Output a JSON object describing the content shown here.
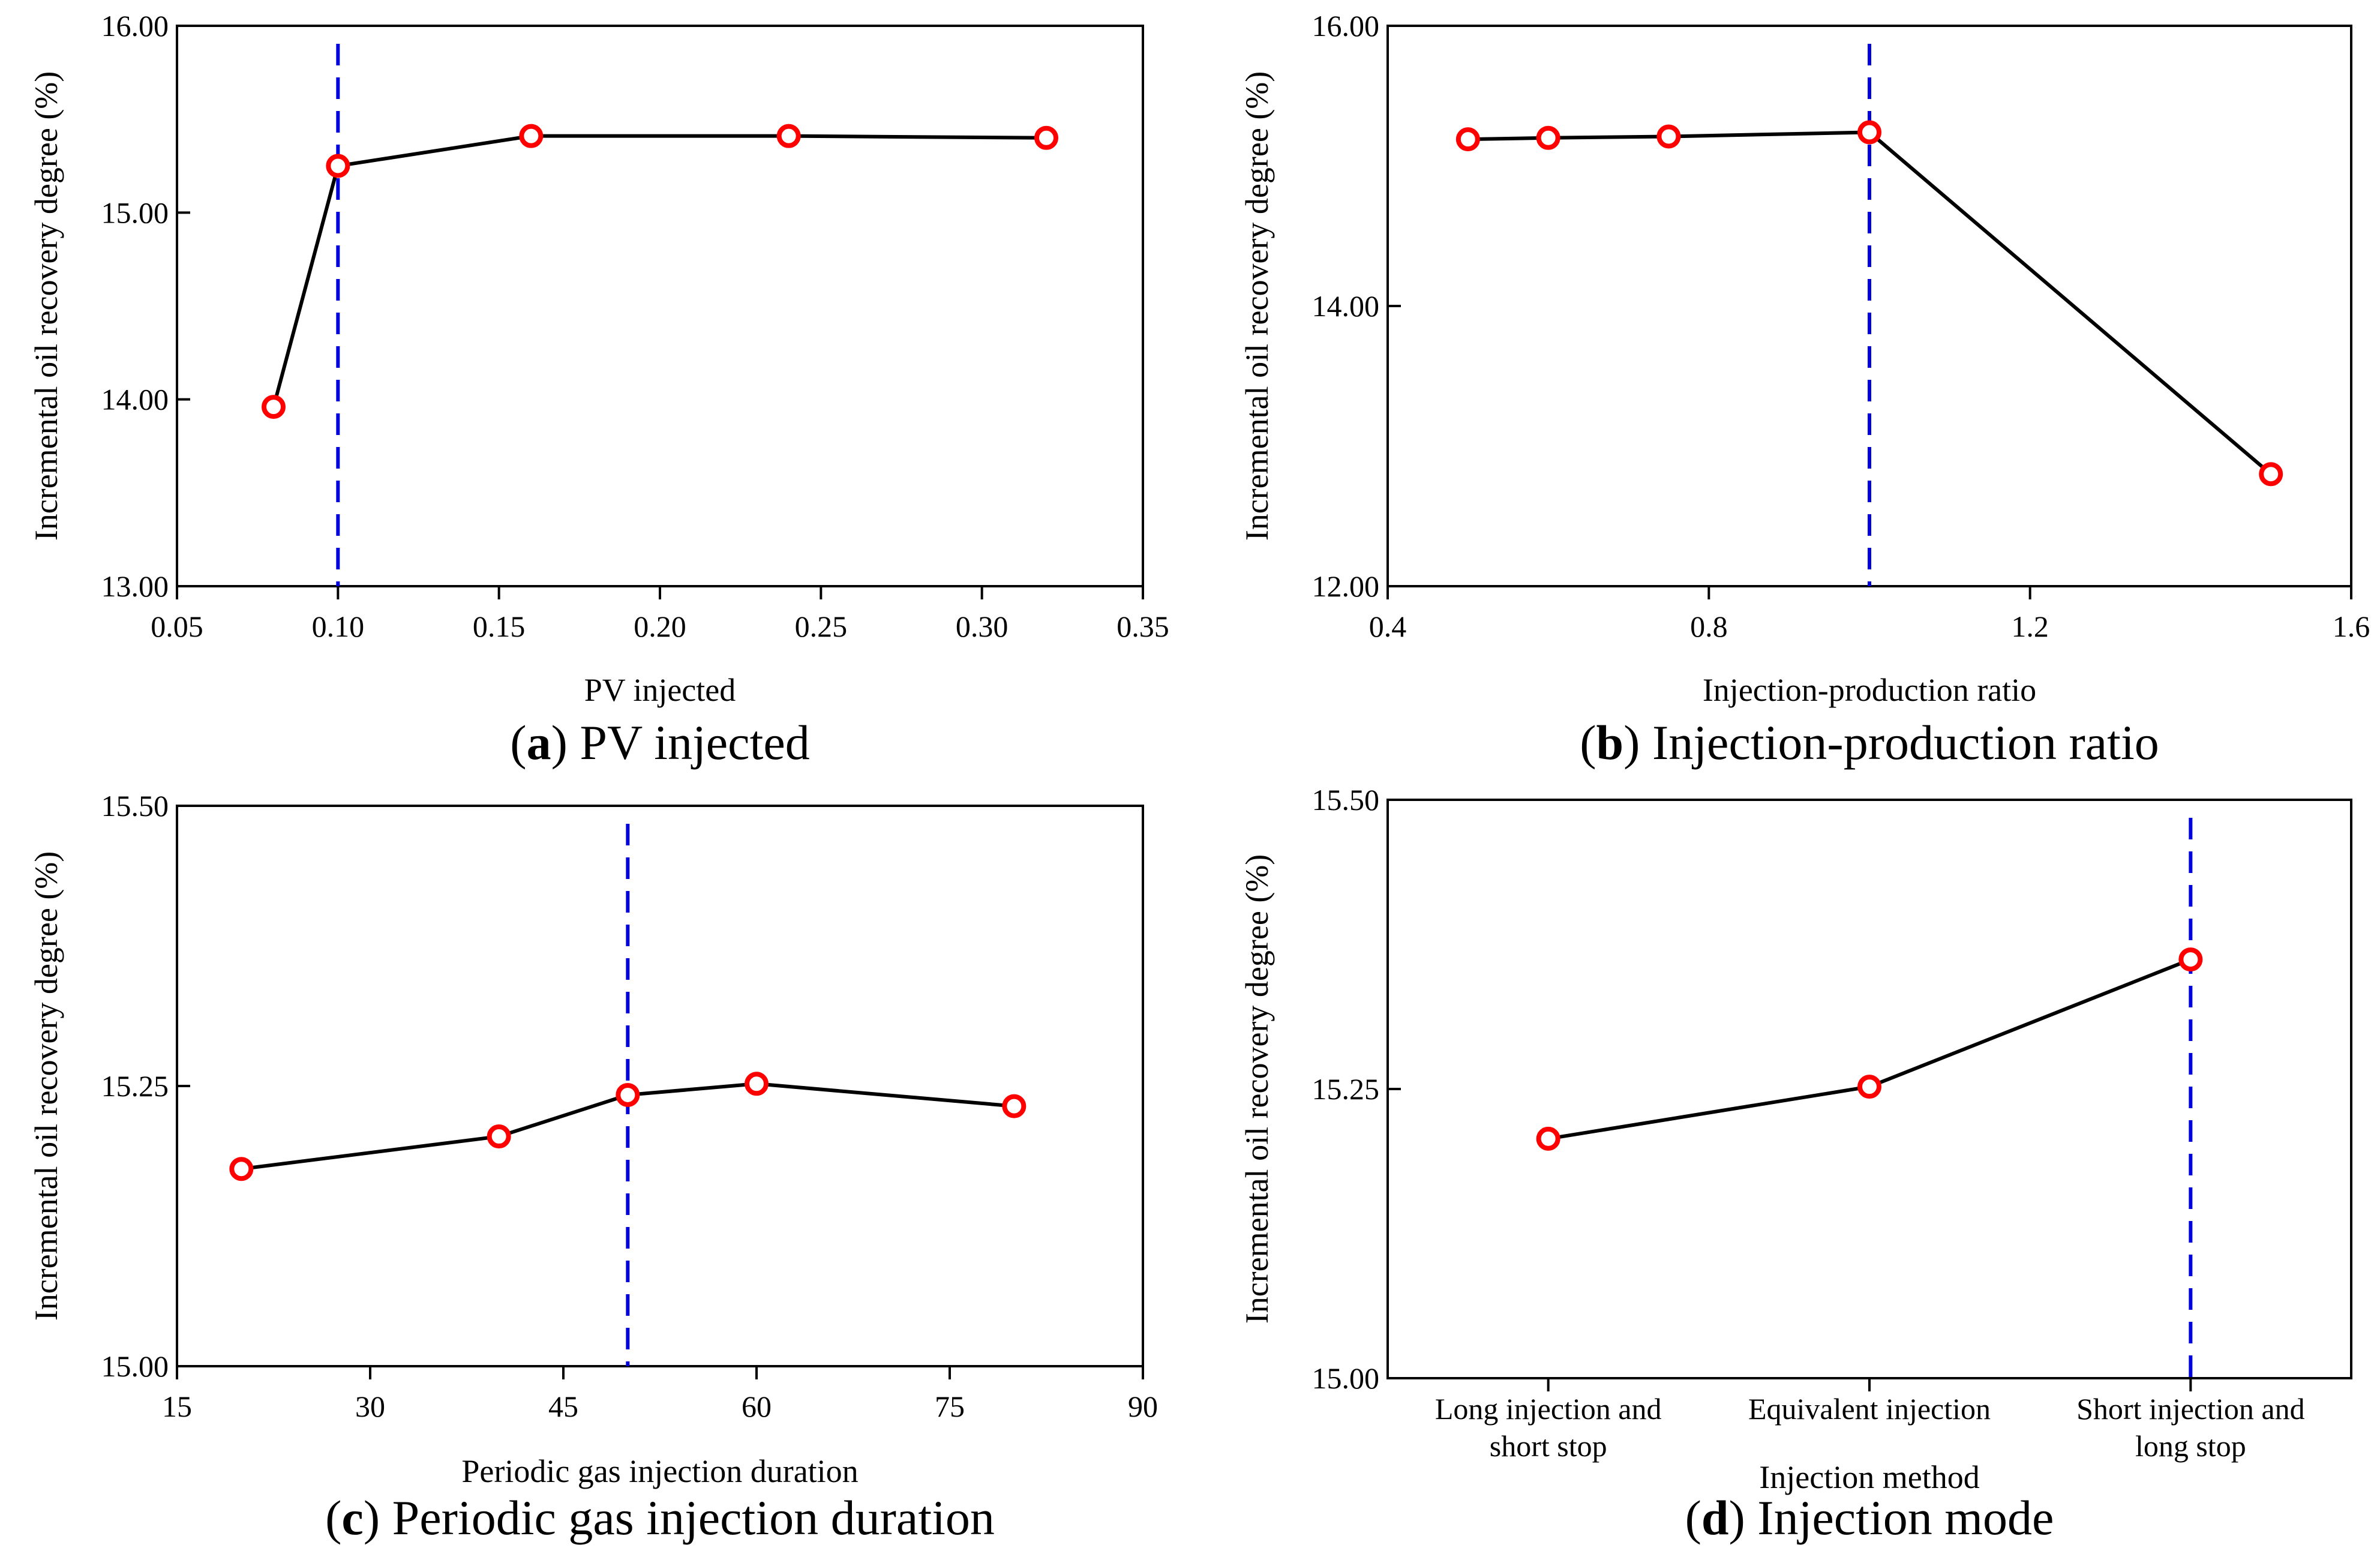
{
  "chart_data": [
    {
      "panel": "a",
      "type": "line",
      "caption_letter": "a",
      "caption_text": "PV injected",
      "xlabel": "PV injected",
      "ylabel": "Incremental oil recovery degree (%)",
      "x": [
        0.08,
        0.1,
        0.16,
        0.24,
        0.32
      ],
      "y": [
        13.96,
        15.25,
        15.41,
        15.41,
        15.4
      ],
      "xlim": [
        0.05,
        0.35
      ],
      "ylim": [
        13.0,
        16.0
      ],
      "xticks": [
        0.05,
        0.1,
        0.15,
        0.2,
        0.25,
        0.3,
        0.35
      ],
      "xtick_labels": [
        "0.05",
        "0.10",
        "0.15",
        "0.20",
        "0.25",
        "0.30",
        "0.35"
      ],
      "yticks": [
        13.0,
        14.0,
        15.0,
        16.0
      ],
      "ytick_labels": [
        "13.00",
        "14.00",
        "15.00",
        "16.00"
      ],
      "optimum_x": 0.1
    },
    {
      "panel": "b",
      "type": "line",
      "caption_letter": "b",
      "caption_text": "Injection-production ratio",
      "xlabel": "Injection-production ratio",
      "ylabel": "Incremental oil recovery degree (%)",
      "x": [
        0.5,
        0.6,
        0.75,
        1.0,
        1.5
      ],
      "y": [
        15.19,
        15.2,
        15.21,
        15.24,
        12.8
      ],
      "xlim": [
        0.4,
        1.6
      ],
      "ylim": [
        12.0,
        16.0
      ],
      "xticks": [
        0.4,
        0.8,
        1.2,
        1.6
      ],
      "xtick_labels": [
        "0.4",
        "0.8",
        "1.2",
        "1.6"
      ],
      "yticks": [
        12.0,
        14.0,
        16.0
      ],
      "ytick_labels": [
        "12.00",
        "14.00",
        "16.00"
      ],
      "optimum_x": 1.0
    },
    {
      "panel": "c",
      "type": "line",
      "caption_letter": "c",
      "caption_text": "Periodic gas injection duration",
      "xlabel": "Periodic gas injection duration",
      "ylabel": "Incremental oil recovery degree (%)",
      "x": [
        20,
        40,
        50,
        60,
        80
      ],
      "y": [
        15.176,
        15.205,
        15.242,
        15.252,
        15.232
      ],
      "xlim": [
        15,
        90
      ],
      "ylim": [
        15.0,
        15.5
      ],
      "xticks": [
        15,
        30,
        45,
        60,
        75,
        90
      ],
      "xtick_labels": [
        "15",
        "30",
        "45",
        "60",
        "75",
        "90"
      ],
      "yticks": [
        15.0,
        15.25,
        15.5
      ],
      "ytick_labels": [
        "15.00",
        "15.25",
        "15.50"
      ],
      "optimum_x": 50
    },
    {
      "panel": "d",
      "type": "line",
      "caption_letter": "d",
      "caption_text": "Injection mode",
      "xlabel": "Injection method",
      "ylabel": "Incremental oil recovery degree (%)",
      "categories": [
        [
          "Long injection and",
          "short stop"
        ],
        [
          "Equivalent injection"
        ],
        [
          "Short injection and",
          "long stop"
        ]
      ],
      "x": [
        0,
        1,
        2
      ],
      "y": [
        15.207,
        15.252,
        15.362
      ],
      "xlim": [
        -0.5,
        2.5
      ],
      "ylim": [
        15.0,
        15.5
      ],
      "xticks": [
        0,
        1,
        2
      ],
      "yticks": [
        15.0,
        15.25,
        15.5
      ],
      "ytick_labels": [
        "15.00",
        "15.25",
        "15.50"
      ],
      "optimum_x": 2
    }
  ]
}
